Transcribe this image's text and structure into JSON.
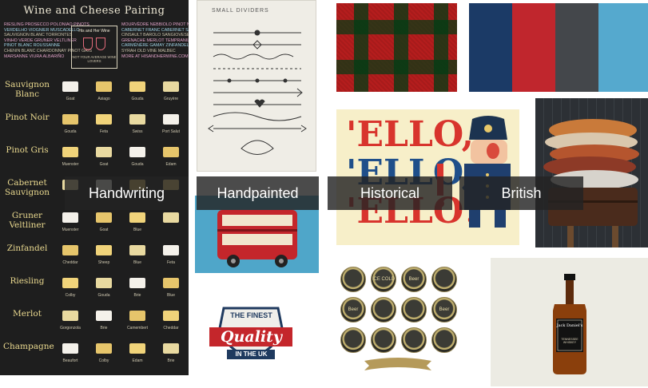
{
  "labels": {
    "handwriting": "Handwriting",
    "handpainted": "Handpainted",
    "historical": "Historical",
    "british": "British"
  },
  "wine_card": {
    "title": "Wine and Cheese Pairing",
    "left_list": [
      "RIESLING PROSECCO POLONIAO PINOTS",
      "VERDELHO VIOGNIER MUSCADELLO",
      "SAUVIGNON BLANC TORRONTES",
      "VINHO VERDE GRUNER VELTLINER",
      "PINOT BLANC ROUSSANNE",
      "CHENIN BLANC CHARDONNAY PINOT GRIS",
      "MARSANNE VIURA ALBARIÑO"
    ],
    "right_list": [
      "MOURVÈDRE NEBBIOLO PINOT NOIR",
      "CABERNET FRANC CABERNET SAUVIGNON",
      "CINSAULT BAROLO SANGIOVESE",
      "GRENACHE MERLOT TEMPRANILLO",
      "CARMÉNÈRE GAMAY ZINFANDEL",
      "SYRAH OLD VINE MALBEC",
      "MORE AT HISANDHERWINE.COM"
    ],
    "box_title": "His and Her Wine",
    "box_text": "NOT YOUR AVERAGE WINE LOVERS",
    "rows": [
      {
        "wine": "Sauvignon Blanc",
        "cheeses": [
          "Goat",
          "Asiago",
          "Gouda",
          "Gruyère"
        ]
      },
      {
        "wine": "Pinot Noir",
        "cheeses": [
          "Gouda",
          "Feta",
          "Swiss",
          "Port Salut"
        ]
      },
      {
        "wine": "Pinot Gris",
        "cheeses": [
          "Muenster",
          "Goat",
          "Gouda",
          "Edam"
        ]
      },
      {
        "wine": "Cabernet Sauvignon",
        "cheeses": [
          "",
          "",
          "",
          ""
        ]
      },
      {
        "wine": "Gruner Veltliner",
        "cheeses": [
          "Muenster",
          "Goat",
          "Blue",
          ""
        ]
      },
      {
        "wine": "Zinfandel",
        "cheeses": [
          "Cheddar",
          "Sheep",
          "Blue",
          "Feta"
        ]
      },
      {
        "wine": "Riesling",
        "cheeses": [
          "Colby",
          "Gouda",
          "Brie",
          "Blue"
        ]
      },
      {
        "wine": "Merlot",
        "cheeses": [
          "Gorgonzola",
          "Brie",
          "Camembert",
          "Cheddar"
        ]
      },
      {
        "wine": "Champagne",
        "cheeses": [
          "Beaufort",
          "Colby",
          "Edam",
          "Brie"
        ]
      }
    ]
  },
  "dividers_title": "SMALL DIVIDERS",
  "ello_lines": [
    "'ELLO,",
    "'ELLO,",
    "'ELLO!"
  ],
  "quality": {
    "top": "THE FINEST",
    "main": "Quality",
    "bottom": "IN THE UK"
  },
  "caps": [
    "",
    "ICE COLD",
    "Beer",
    "",
    "Beer",
    "",
    "",
    "Beer",
    "",
    "",
    "",
    ""
  ],
  "bottle_brand": "Jack Daniel's",
  "bottle_sub": "TENNESSEE WHISKEY",
  "colors": {
    "navy": "#1b3a66",
    "red": "#c0262d",
    "charcoal": "#44474b",
    "sky": "#55a9ce"
  }
}
